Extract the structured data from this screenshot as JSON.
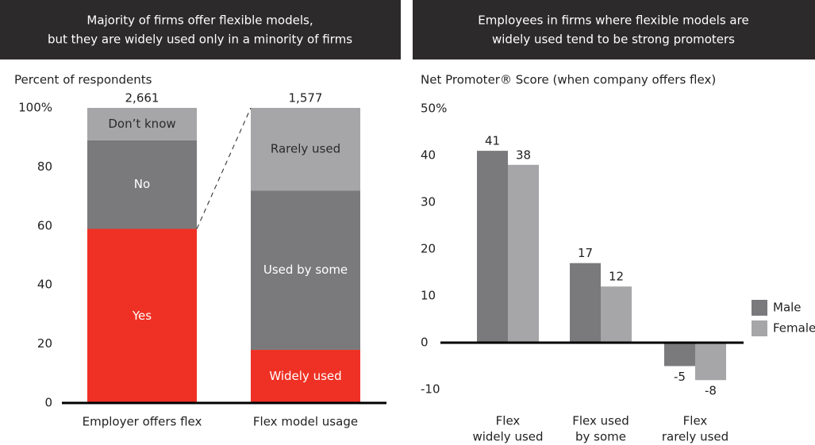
{
  "chart_data": [
    {
      "type": "stacked_bar",
      "title": [
        "Majority of firms offer flexible models,",
        "but they are widely used only in a minority of firms"
      ],
      "y_label": "Percent of respondents",
      "ylim": [
        0,
        100
      ],
      "yticks": [
        0,
        20,
        40,
        60,
        80,
        {
          "value": 100,
          "label": "100%"
        }
      ],
      "categories": [
        "Employer offers flex",
        "Flex model usage"
      ],
      "bar_totals": [
        "2,661",
        "1,577"
      ],
      "stacks": [
        {
          "segments": [
            {
              "name": "Yes",
              "value": 59,
              "color": "#ee3124",
              "label_color": "#ffffff"
            },
            {
              "name": "No",
              "value": 30,
              "color": "#7a7a7c",
              "label_color": "#ffffff"
            },
            {
              "name": "Don’t know",
              "value": 11,
              "color": "#a6a6a8",
              "label_color": "#2a2a2a"
            }
          ]
        },
        {
          "segments": [
            {
              "name": "Widely used",
              "value": 18,
              "color": "#ee3124",
              "label_color": "#ffffff"
            },
            {
              "name": "Used by some",
              "value": 54,
              "color": "#7a7a7c",
              "label_color": "#ffffff"
            },
            {
              "name": "Rarely used",
              "value": 28,
              "color": "#a6a6a8",
              "label_color": "#2a2a2a"
            }
          ]
        }
      ]
    },
    {
      "type": "bar",
      "title": [
        "Employees in firms where flexible models are",
        "widely used tend to be strong promoters"
      ],
      "y_label": "Net Promoter® Score (when company offers flex)",
      "ylim": [
        -10,
        50
      ],
      "yticks": [
        -10,
        0,
        10,
        20,
        30,
        40,
        {
          "value": 50,
          "label": "50%"
        }
      ],
      "categories": [
        [
          "Flex",
          "widely used"
        ],
        [
          "Flex used",
          "by some"
        ],
        [
          "Flex",
          "rarely used"
        ]
      ],
      "series": [
        {
          "name": "Male",
          "color": "#7a7a7c",
          "values": [
            41,
            17,
            -5
          ]
        },
        {
          "name": "Female",
          "color": "#a6a6a8",
          "values": [
            38,
            12,
            -8
          ]
        }
      ],
      "legend": "right"
    }
  ]
}
